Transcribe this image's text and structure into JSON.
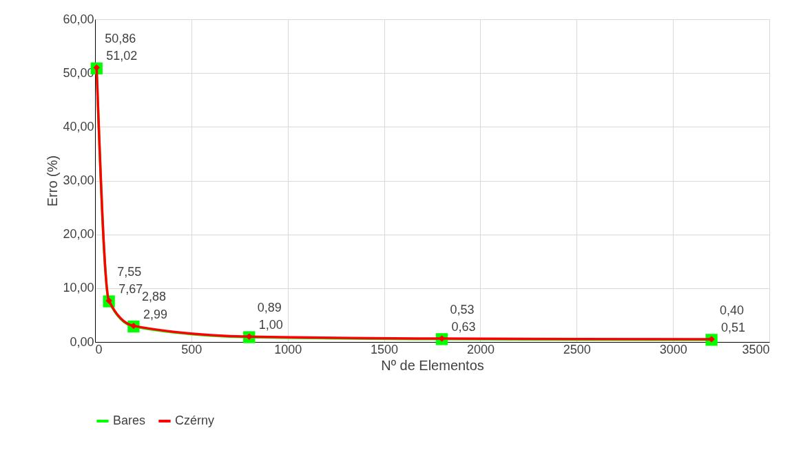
{
  "chart_data": {
    "type": "line",
    "xlabel": "Nº de Elementos",
    "ylabel": "Erro (%)",
    "x": [
      8,
      72,
      200,
      800,
      1800,
      3200
    ],
    "series": [
      {
        "name": "Bares",
        "color": "#00ff00",
        "marker": "square",
        "values": [
          50.86,
          7.55,
          2.88,
          0.89,
          0.53,
          0.4
        ],
        "value_labels": [
          "50,86",
          "7,55",
          "2,88",
          "0,89",
          "0,53",
          "0,40"
        ]
      },
      {
        "name": "Czérny",
        "color": "#ff0000",
        "marker": "diamond",
        "values": [
          51.02,
          7.67,
          2.99,
          1.0,
          0.63,
          0.51
        ],
        "value_labels": [
          "51,02",
          "7,67",
          "2,99",
          "1,00",
          "0,63",
          "0,51"
        ]
      }
    ],
    "xlim": [
      0,
      3500
    ],
    "xticks": [
      0,
      500,
      1000,
      1500,
      2000,
      2500,
      3000,
      3500
    ],
    "ylim": [
      0,
      60
    ],
    "yticks": [
      {
        "value": 0,
        "label": "0,00"
      },
      {
        "value": 10,
        "label": "10,00"
      },
      {
        "value": 20,
        "label": "20,00"
      },
      {
        "value": 30,
        "label": "30,00"
      },
      {
        "value": 40,
        "label": "40,00"
      },
      {
        "value": 50,
        "label": "50,00"
      },
      {
        "value": 60,
        "label": "60,00"
      }
    ],
    "grid": true,
    "legend": "bottom",
    "line_style": "solid"
  }
}
